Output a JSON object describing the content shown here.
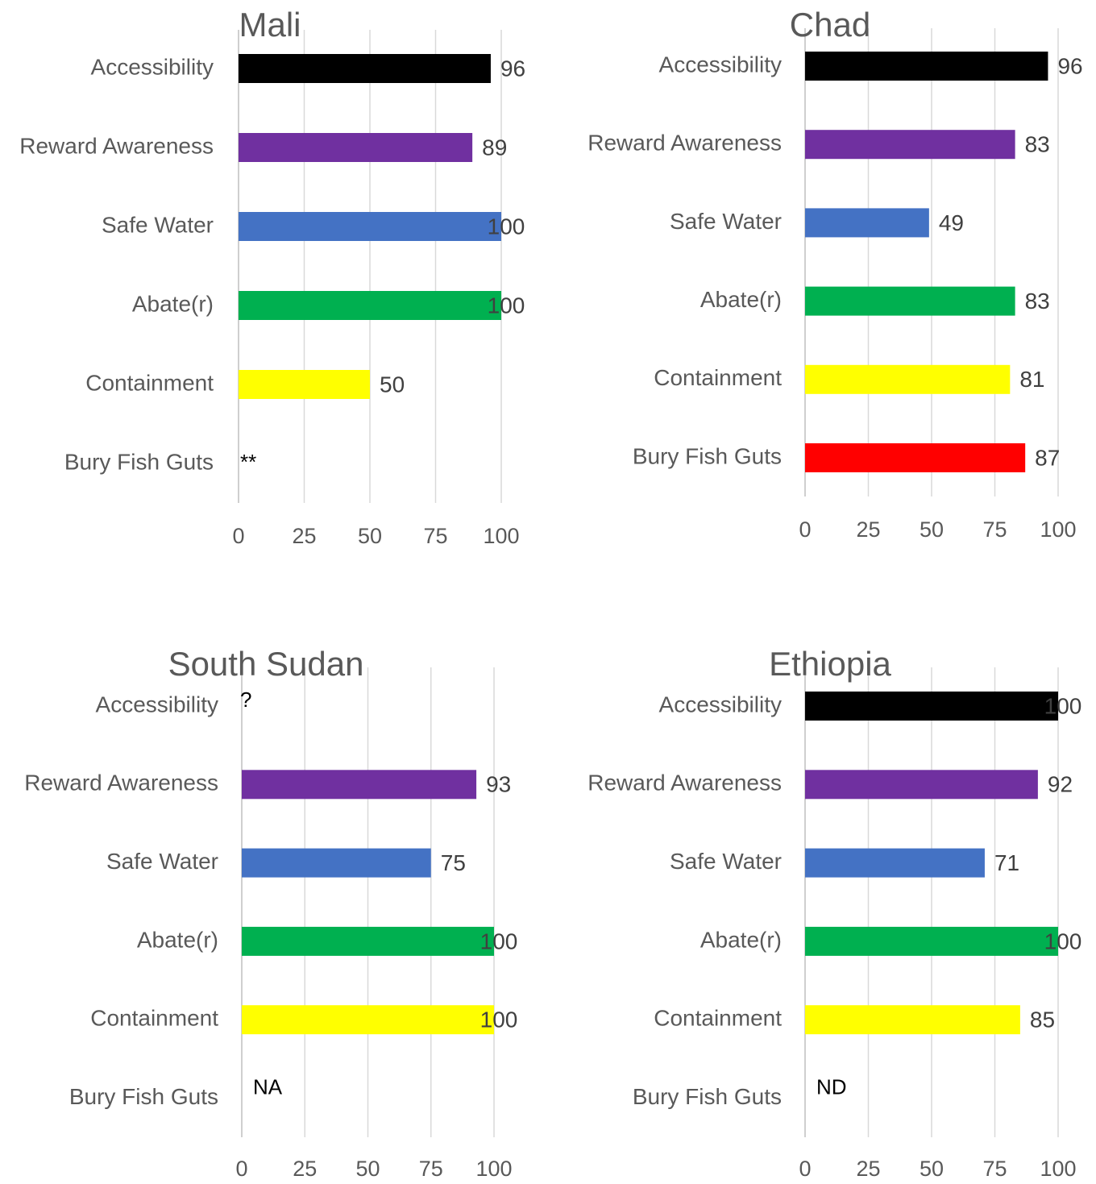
{
  "chart_data": [
    {
      "type": "bar",
      "title": "Mali",
      "categories": [
        "Accessibility",
        "Reward Awareness",
        "Safe Water",
        "Abate(r)",
        "Containment",
        "Bury Fish Guts"
      ],
      "values": [
        96,
        89,
        100,
        100,
        50,
        null
      ],
      "value_labels": [
        "96",
        "89",
        "100",
        "100",
        "50",
        "**"
      ],
      "bar_colors": [
        "#000000",
        "#7030a0",
        "#4472c4",
        "#00b050",
        "#ffff00",
        null
      ],
      "xticks": [
        "0",
        "25",
        "50",
        "75",
        "100"
      ],
      "xlim": [
        0,
        100
      ],
      "orientation": "horizontal",
      "grid": true
    },
    {
      "type": "bar",
      "title": "Chad",
      "categories": [
        "Accessibility",
        "Reward Awareness",
        "Safe Water",
        "Abate(r)",
        "Containment",
        "Bury Fish Guts"
      ],
      "values": [
        96,
        83,
        49,
        83,
        81,
        87
      ],
      "value_labels": [
        "96",
        "83",
        "49",
        "83",
        "81",
        "87"
      ],
      "bar_colors": [
        "#000000",
        "#7030a0",
        "#4472c4",
        "#00b050",
        "#ffff00",
        "#ff0000"
      ],
      "xticks": [
        "0",
        "25",
        "50",
        "75",
        "100"
      ],
      "xlim": [
        0,
        100
      ],
      "orientation": "horizontal",
      "grid": true
    },
    {
      "type": "bar",
      "title": "South Sudan",
      "categories": [
        "Accessibility",
        "Reward Awareness",
        "Safe Water",
        "Abate(r)",
        "Containment",
        "Bury Fish Guts"
      ],
      "values": [
        null,
        93,
        75,
        100,
        100,
        null
      ],
      "value_labels": [
        "?",
        "93",
        "75",
        "100",
        "100",
        "NA"
      ],
      "bar_colors": [
        null,
        "#7030a0",
        "#4472c4",
        "#00b050",
        "#ffff00",
        null
      ],
      "xticks": [
        "0",
        "25",
        "50",
        "75",
        "100"
      ],
      "xlim": [
        0,
        100
      ],
      "orientation": "horizontal",
      "grid": true
    },
    {
      "type": "bar",
      "title": "Ethiopia",
      "categories": [
        "Accessibility",
        "Reward Awareness",
        "Safe Water",
        "Abate(r)",
        "Containment",
        "Bury Fish Guts"
      ],
      "values": [
        100,
        92,
        71,
        100,
        85,
        null
      ],
      "value_labels": [
        "100",
        "92",
        "71",
        "100",
        "85",
        "ND"
      ],
      "bar_colors": [
        "#000000",
        "#7030a0",
        "#4472c4",
        "#00b050",
        "#ffff00",
        null
      ],
      "xticks": [
        "0",
        "25",
        "50",
        "75",
        "100"
      ],
      "xlim": [
        0,
        100
      ],
      "orientation": "horizontal",
      "grid": true
    }
  ]
}
